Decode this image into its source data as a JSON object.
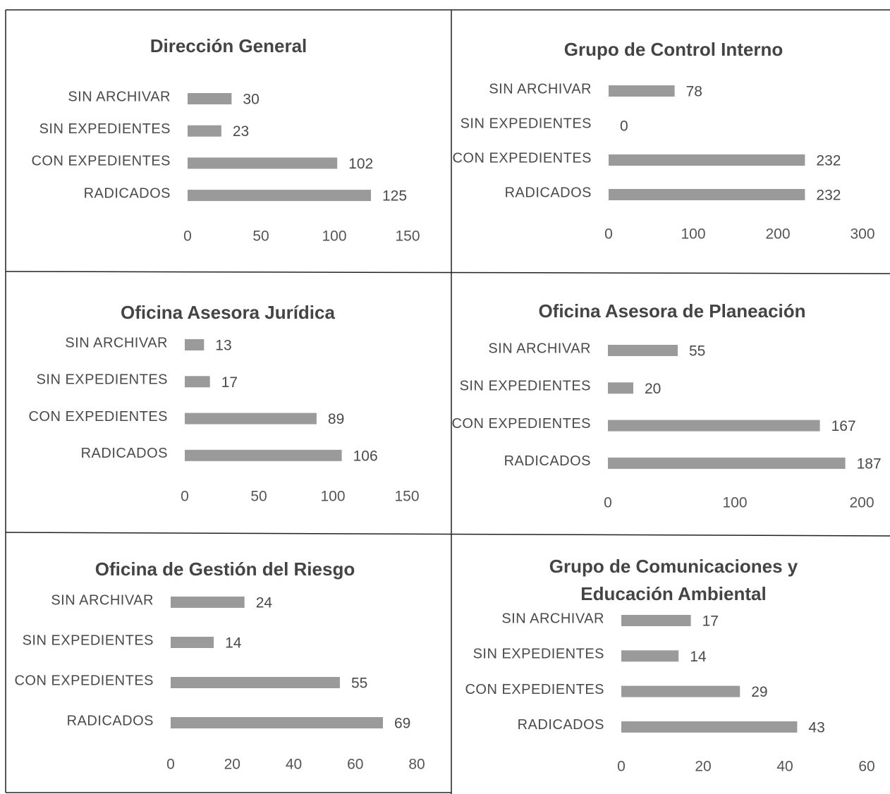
{
  "chart_data": [
    {
      "type": "bar",
      "orientation": "horizontal",
      "title": "Dirección General",
      "categories": [
        "SIN ARCHIVAR",
        "SIN EXPEDIENTES",
        "CON EXPEDIENTES",
        "RADICADOS"
      ],
      "values": [
        30,
        23,
        102,
        125
      ],
      "color": "#9a9a9a",
      "xlim": [
        0,
        150
      ],
      "xticks": [
        0,
        50,
        100,
        150
      ]
    },
    {
      "type": "bar",
      "orientation": "horizontal",
      "title": "Grupo de Control Interno",
      "categories": [
        "SIN ARCHIVAR",
        "SIN EXPEDIENTES",
        "CON EXPEDIENTES",
        "RADICADOS"
      ],
      "values": [
        78,
        0,
        232,
        232
      ],
      "color": "#9a9a9a",
      "xlim": [
        0,
        300
      ],
      "xticks": [
        0,
        100,
        200,
        300
      ]
    },
    {
      "type": "bar",
      "orientation": "horizontal",
      "title": "Oficina Asesora Jurídica",
      "categories": [
        "SIN ARCHIVAR",
        "SIN EXPEDIENTES",
        "CON EXPEDIENTES",
        "RADICADOS"
      ],
      "values": [
        13,
        17,
        89,
        106
      ],
      "color": "#9a9a9a",
      "xlim": [
        0,
        150
      ],
      "xticks": [
        0,
        50,
        100,
        150
      ]
    },
    {
      "type": "bar",
      "orientation": "horizontal",
      "title": "Oficina Asesora de Planeación",
      "categories": [
        "SIN ARCHIVAR",
        "SIN EXPEDIENTES",
        "CON EXPEDIENTES",
        "RADICADOS"
      ],
      "values": [
        55,
        20,
        167,
        187
      ],
      "color": "#9a9a9a",
      "xlim": [
        0,
        200
      ],
      "xticks": [
        0,
        100,
        200
      ]
    },
    {
      "type": "bar",
      "orientation": "horizontal",
      "title": "Oficina de Gestión del Riesgo",
      "categories": [
        "SIN ARCHIVAR",
        "SIN EXPEDIENTES",
        "CON EXPEDIENTES",
        "RADICADOS"
      ],
      "values": [
        24,
        14,
        55,
        69
      ],
      "color": "#9a9a9a",
      "xlim": [
        0,
        80
      ],
      "xticks": [
        0,
        20,
        40,
        60,
        80
      ]
    },
    {
      "type": "bar",
      "orientation": "horizontal",
      "title": "Grupo de Comunicaciones y Educación Ambiental",
      "categories": [
        "SIN ARCHIVAR",
        "SIN EXPEDIENTES",
        "CON EXPEDIENTES",
        "RADICADOS"
      ],
      "values": [
        17,
        14,
        29,
        43
      ],
      "color": "#9a9a9a",
      "xlim": [
        0,
        60
      ],
      "xticks": [
        0,
        20,
        40,
        60
      ]
    }
  ]
}
